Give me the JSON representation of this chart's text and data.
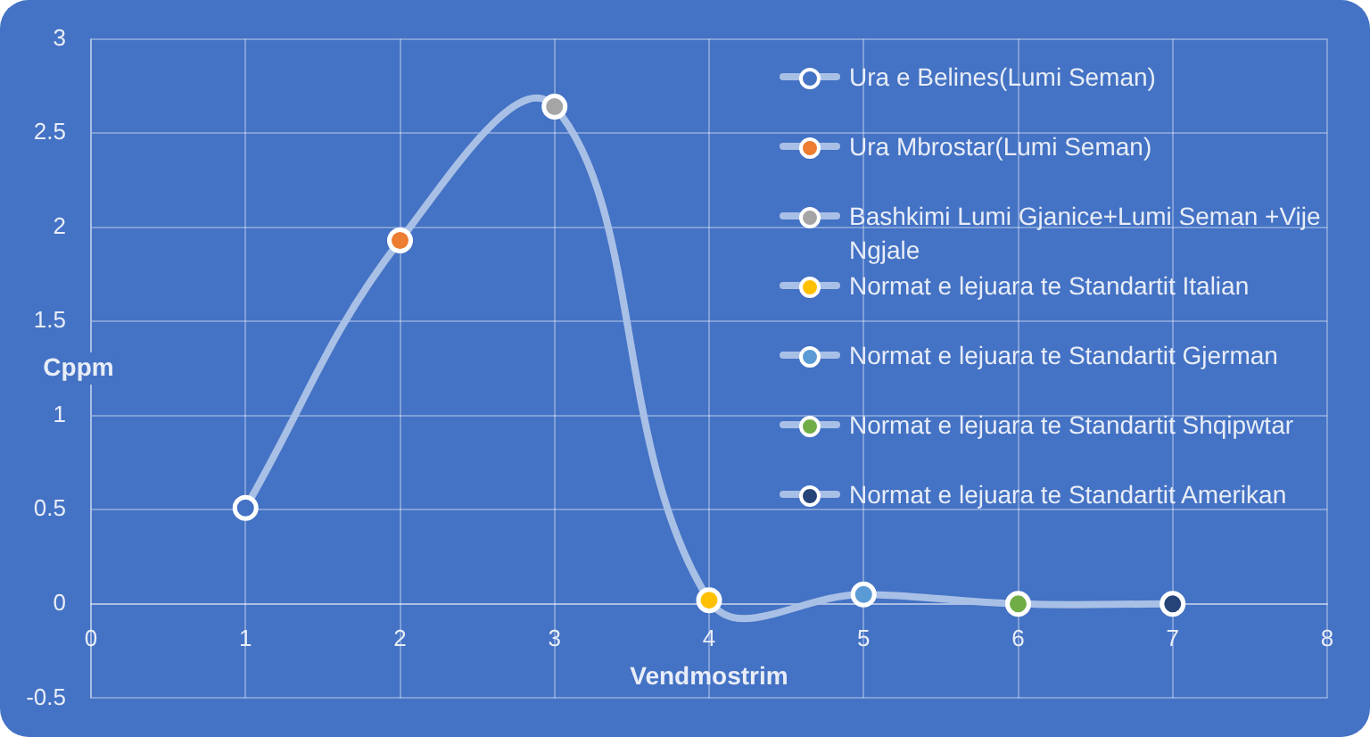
{
  "chart_data": {
    "type": "line",
    "xlabel": "Vendmostrim",
    "ylabel": "Cppm",
    "x": [
      1,
      2,
      3,
      4,
      5,
      6,
      7
    ],
    "series": [
      {
        "color": "#a9c0e6",
        "marker": "none",
        "values": [
          0.51,
          1.93,
          2.64,
          0.02,
          0.05,
          0,
          0
        ]
      },
      {
        "name": "Ura e Belines(Lumi Seman)",
        "type": "scatter",
        "color": "#4472c4",
        "x": [
          1
        ],
        "values": [
          0.51
        ]
      },
      {
        "name": "Ura Mbrostar(Lumi Seman)",
        "type": "scatter",
        "color": "#ed7d31",
        "x": [
          2
        ],
        "values": [
          1.93
        ]
      },
      {
        "name": "Bashkimi Lumi Gjanice+Lumi Seman +Vije Ngjale",
        "type": "scatter",
        "color": "#a5a5a5",
        "x": [
          3
        ],
        "values": [
          2.64
        ]
      },
      {
        "name": "Normat e lejuara te Standartit Italian",
        "type": "scatter",
        "color": "#ffc000",
        "x": [
          4
        ],
        "values": [
          0.02
        ]
      },
      {
        "name": "Normat e lejuara te Standartit Gjerman",
        "type": "scatter",
        "color": "#5b9bd5",
        "x": [
          5
        ],
        "values": [
          0.05
        ]
      },
      {
        "name": "Normat e lejuara te Standartit Shqipwtar",
        "type": "scatter",
        "color": "#70ad47",
        "x": [
          6
        ],
        "values": [
          0
        ]
      },
      {
        "name": "Normat e lejuara te Standartit Amerikan",
        "type": "scatter",
        "color": "#264478",
        "x": [
          7
        ],
        "values": [
          0
        ]
      }
    ],
    "xlim": [
      0,
      8
    ],
    "xticks": [
      0,
      1,
      2,
      3,
      4,
      5,
      6,
      7,
      8
    ],
    "ylim": [
      -0.5,
      3
    ],
    "yticks": [
      -0.5,
      0,
      0.5,
      1,
      1.5,
      2,
      2.5,
      3
    ],
    "grid": true,
    "legend": "top right",
    "marker": "circle"
  }
}
